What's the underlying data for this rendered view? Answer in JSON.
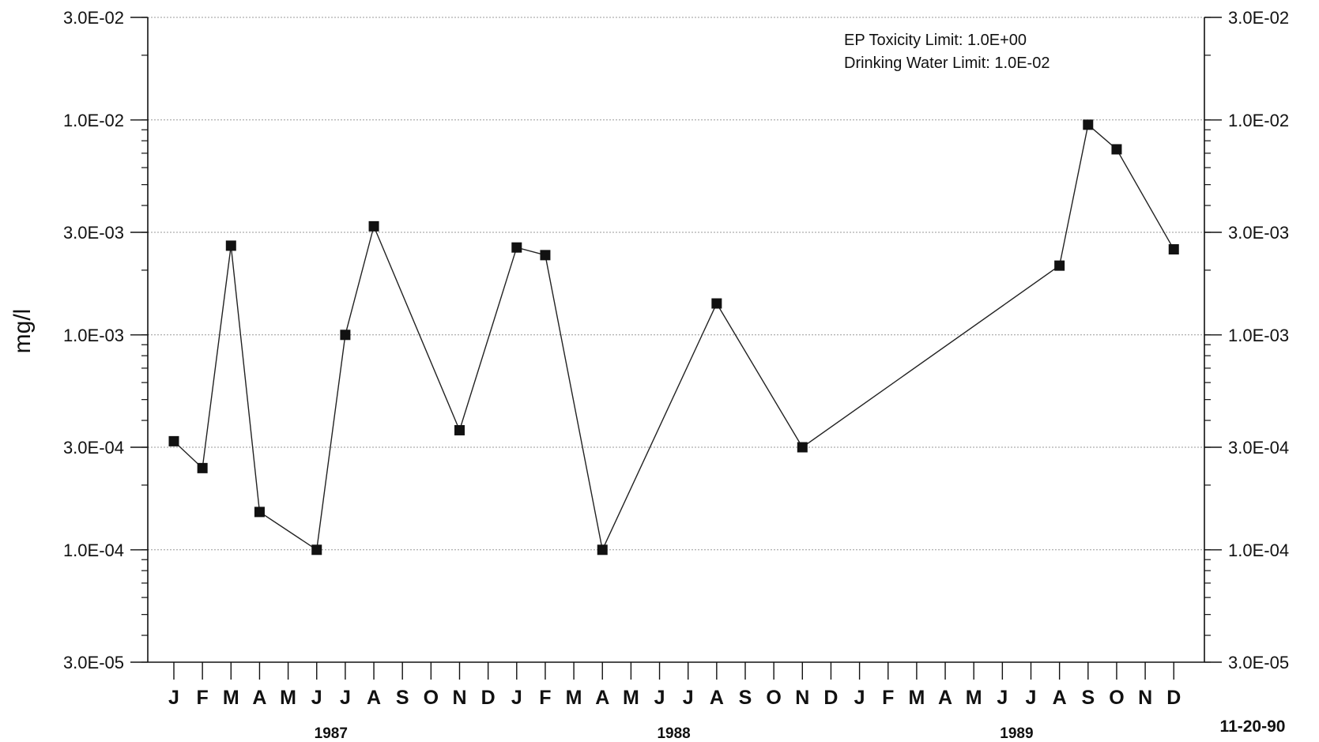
{
  "chart_data": {
    "type": "line",
    "ylabel": "mg/l",
    "yscale": "log",
    "ylim": [
      3e-05,
      0.03
    ],
    "y_ticks": [
      {
        "value": 0.03,
        "label": "3.0E-02"
      },
      {
        "value": 0.01,
        "label": "1.0E-02"
      },
      {
        "value": 0.003,
        "label": "3.0E-03"
      },
      {
        "value": 0.001,
        "label": "1.0E-03"
      },
      {
        "value": 0.0003,
        "label": "3.0E-04"
      },
      {
        "value": 0.0001,
        "label": "1.0E-04"
      },
      {
        "value": 3e-05,
        "label": "3.0E-05"
      }
    ],
    "months": [
      "J",
      "F",
      "M",
      "A",
      "M",
      "J",
      "J",
      "A",
      "S",
      "O",
      "N",
      "D",
      "J",
      "F",
      "M",
      "A",
      "M",
      "J",
      "J",
      "A",
      "S",
      "O",
      "N",
      "D",
      "J",
      "F",
      "M",
      "A",
      "M",
      "J",
      "J",
      "A",
      "S",
      "O",
      "N",
      "D"
    ],
    "years": [
      {
        "label": "1987",
        "month_index": 5.5
      },
      {
        "label": "1988",
        "month_index": 17.5
      },
      {
        "label": "1989",
        "month_index": 29.5
      }
    ],
    "grid": true,
    "marker": "square",
    "series": [
      {
        "points": [
          {
            "x": "Jan 1987",
            "month_index": 0,
            "y": 0.00032
          },
          {
            "x": "Feb 1987",
            "month_index": 1,
            "y": 0.00024
          },
          {
            "x": "Mar 1987",
            "month_index": 2,
            "y": 0.0026
          },
          {
            "x": "Apr 1987",
            "month_index": 3,
            "y": 0.00015
          },
          {
            "x": "Jun 1987",
            "month_index": 5,
            "y": 0.0001
          },
          {
            "x": "Jul 1987",
            "month_index": 6,
            "y": 0.001
          },
          {
            "x": "Aug 1987",
            "month_index": 7,
            "y": 0.0032
          },
          {
            "x": "Nov 1987",
            "month_index": 10,
            "y": 0.00036
          },
          {
            "x": "Jan 1988",
            "month_index": 12,
            "y": 0.00255
          },
          {
            "x": "Feb 1988",
            "month_index": 13,
            "y": 0.00235
          },
          {
            "x": "Apr 1988",
            "month_index": 15,
            "y": 0.0001
          },
          {
            "x": "Aug 1988",
            "month_index": 19,
            "y": 0.0014
          },
          {
            "x": "Nov 1988",
            "month_index": 22,
            "y": 0.0003
          },
          {
            "x": "Aug 1989",
            "month_index": 31,
            "y": 0.0021
          },
          {
            "x": "Sep 1989",
            "month_index": 32,
            "y": 0.0095
          },
          {
            "x": "Oct 1989",
            "month_index": 33,
            "y": 0.0073
          },
          {
            "x": "Dec 1989",
            "month_index": 35,
            "y": 0.0025
          }
        ]
      }
    ],
    "annotations": {
      "ep_toxicity": "EP Toxicity Limit:  1.0E+00",
      "drinking_water": "Drinking Water Limit:  1.0E-02"
    },
    "date_stamp": "11-20-90"
  }
}
